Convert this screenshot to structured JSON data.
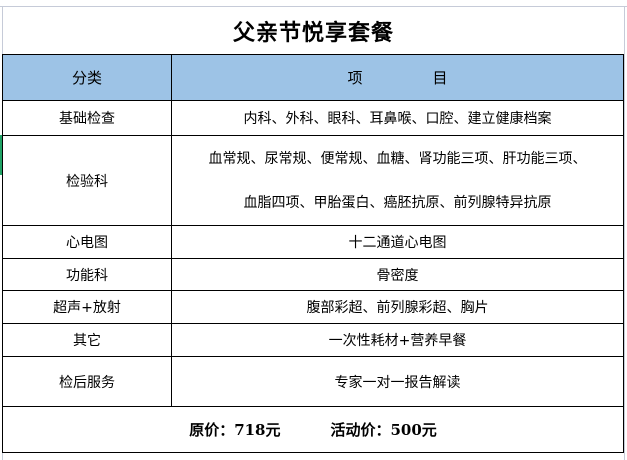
{
  "title": "父亲节悦享套餐",
  "header": {
    "category": "分类",
    "items_a": "项",
    "items_b": "目"
  },
  "rows": [
    {
      "category": "基础检查",
      "items": [
        "内科、外科、眼科、耳鼻喉、口腔、建立健康档案"
      ]
    },
    {
      "category": "检验科",
      "items": [
        "血常规、尿常规、便常规、血糖、肾功能三项、肝功能三项、",
        "血脂四项、甲胎蛋白、癌胚抗原、前列腺特异抗原"
      ]
    },
    {
      "category": "心电图",
      "items": [
        "十二通道心电图"
      ]
    },
    {
      "category": "功能科",
      "items": [
        "骨密度"
      ]
    },
    {
      "category": "超声+放射",
      "items": [
        "腹部彩超、前列腺彩超、胸片"
      ]
    },
    {
      "category": "其它",
      "items": [
        "一次性耗材+营养早餐"
      ]
    },
    {
      "category": "检后服务",
      "items": [
        "专家一对一报告解读"
      ]
    }
  ],
  "footer": {
    "original_price": "原价：718元",
    "sale_price": "活动价：500元"
  },
  "colors": {
    "header_bg": "#9dc3e6"
  }
}
